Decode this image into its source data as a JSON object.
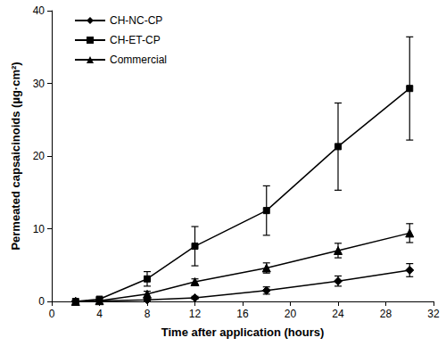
{
  "chart_data": {
    "type": "line",
    "x_label": "Time after application (hours)",
    "y_label": "Permeated capsaicinoids (µg·cm²)",
    "x": [
      2,
      4,
      8,
      12,
      18,
      24,
      30
    ],
    "series": [
      {
        "name": "CH-NC-CP",
        "color": "#000000",
        "marker": "diamond",
        "line_style": "solid",
        "values": [
          0,
          0.05,
          0.2,
          0.5,
          1.5,
          2.8,
          4.3
        ],
        "errors": [
          0,
          0,
          0.1,
          0.2,
          0.5,
          0.7,
          0.9
        ]
      },
      {
        "name": "CH-ET-CP",
        "color": "#000000",
        "marker": "square",
        "line_style": "solid",
        "values": [
          0,
          0.3,
          3.1,
          7.6,
          12.5,
          21.3,
          29.3
        ],
        "errors": [
          0,
          0.2,
          1.0,
          2.7,
          3.4,
          6.0,
          7.1
        ]
      },
      {
        "name": "Commercial",
        "color": "#000000",
        "marker": "triangle",
        "line_style": "solid",
        "values": [
          0,
          0.1,
          1.0,
          2.7,
          4.6,
          7.0,
          9.4
        ],
        "errors": [
          0,
          0.1,
          0.4,
          0.4,
          0.7,
          1.0,
          1.3
        ]
      }
    ],
    "xlim": [
      0,
      32
    ],
    "xticks": [
      0,
      4,
      8,
      12,
      16,
      20,
      24,
      28,
      32
    ],
    "ylim": [
      0,
      40
    ],
    "yticks": [
      0,
      10,
      20,
      30,
      40
    ],
    "grid": false,
    "legend": "upper left"
  }
}
